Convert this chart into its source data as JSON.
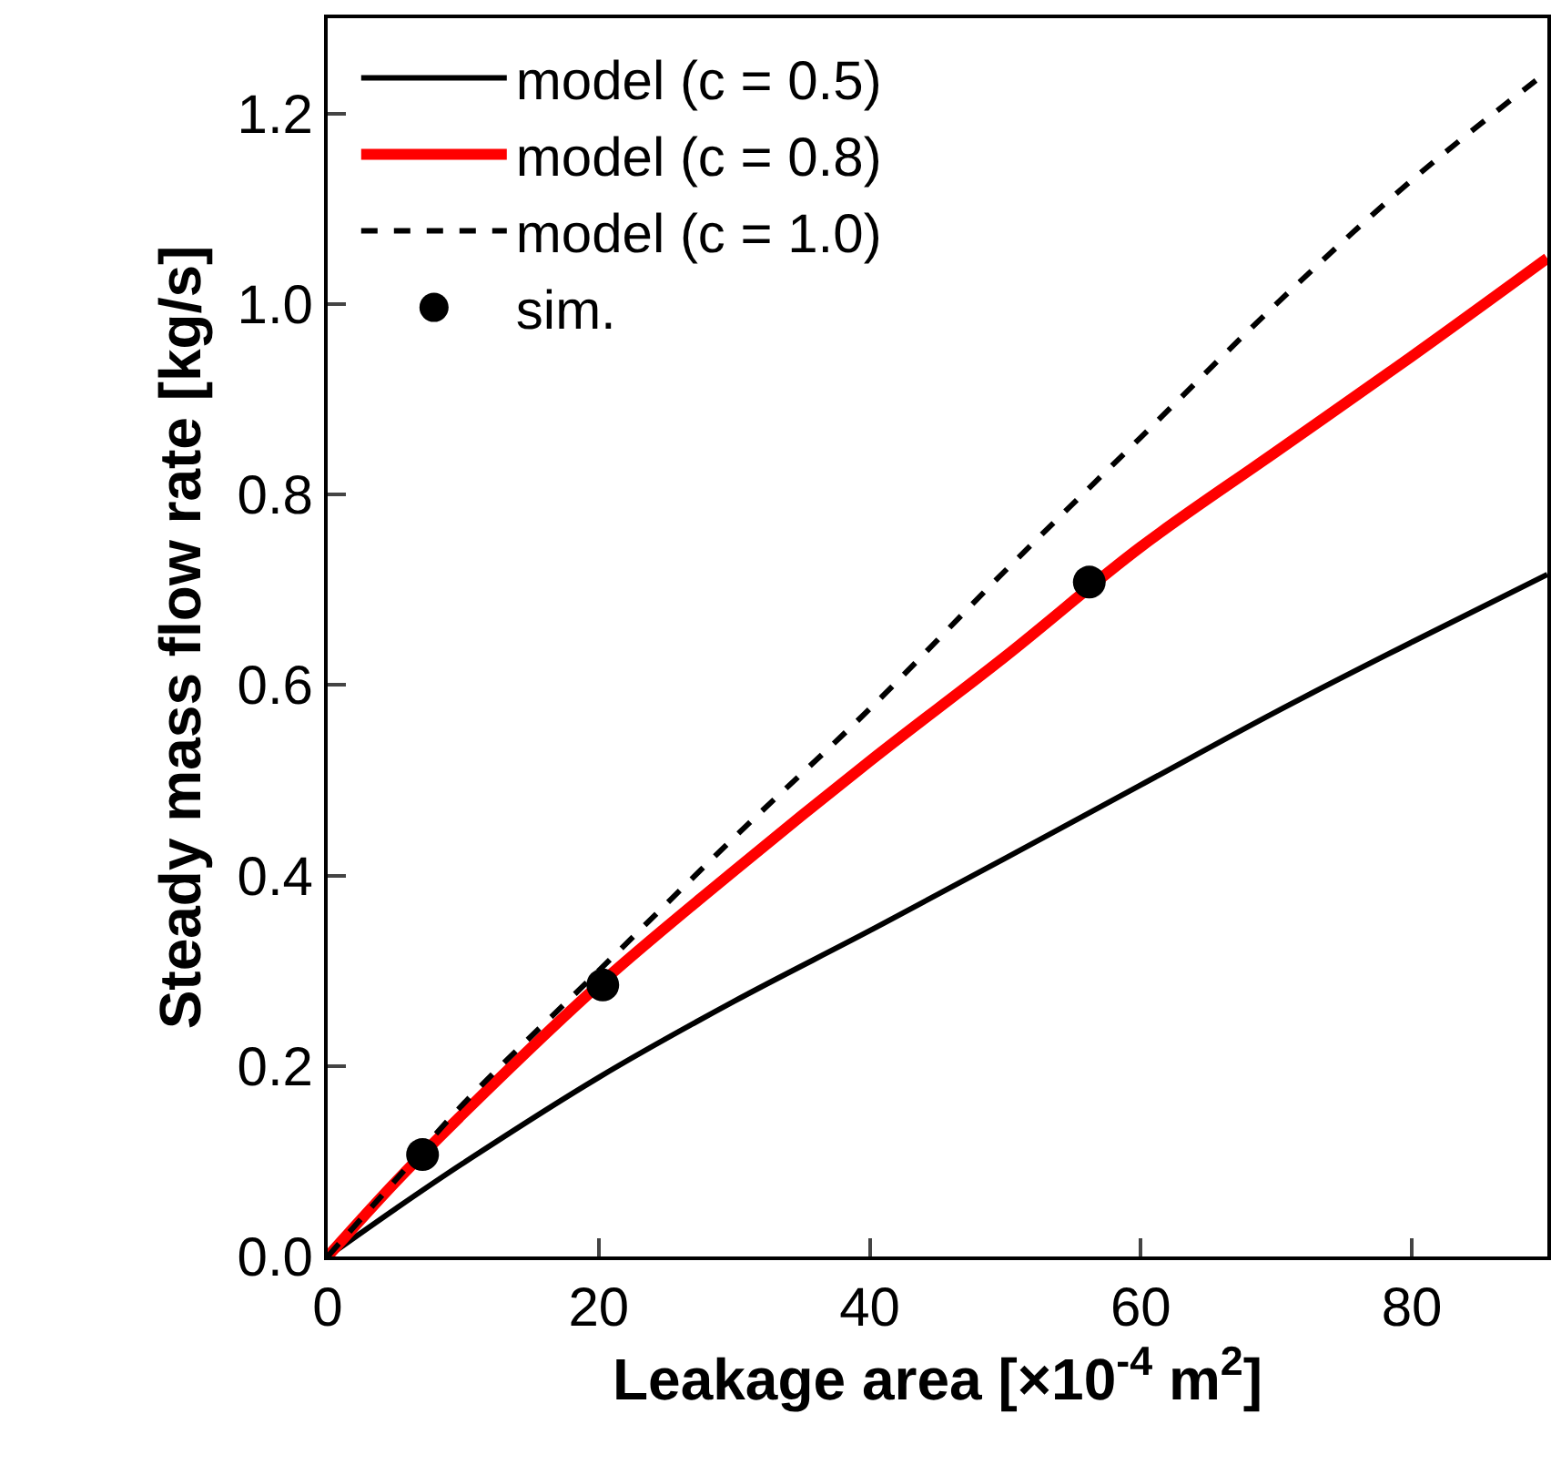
{
  "chart_data": {
    "type": "line",
    "xlabel": "Leakage area [×10$^{-4}$ m$^{2}$]",
    "ylabel": "Steady mass flow rate [kg/s]",
    "x": [
      0,
      5,
      10,
      20,
      30,
      40,
      50,
      60,
      70,
      80,
      90
    ],
    "series": [
      {
        "name": "model (c = 0.5)",
        "color": "#000000",
        "line_style": "solid",
        "values": [
          0,
          0.05,
          0.098,
          0.188,
          0.268,
          0.342,
          0.418,
          0.495,
          0.572,
          0.645,
          0.716
        ]
      },
      {
        "name": "model (c = 0.8)",
        "color": "#ff0000",
        "line_style": "solid",
        "values": [
          0,
          0.078,
          0.15,
          0.285,
          0.405,
          0.52,
          0.63,
          0.745,
          0.845,
          0.945,
          1.048
        ]
      },
      {
        "name": "model (c = 1.0)",
        "color": "#000000",
        "line_style": "dashed",
        "values": [
          0,
          0.08,
          0.16,
          0.3,
          0.44,
          0.575,
          0.72,
          0.86,
          1.0,
          1.13,
          1.244
        ]
      },
      {
        "name": "sim.",
        "type": "scatter",
        "marker": "circle",
        "color": "#000000",
        "x": [
          7,
          20.3,
          56.2
        ],
        "values": [
          0.107,
          0.285,
          0.708
        ]
      }
    ],
    "xlim": [
      0,
      90
    ],
    "xticks": [
      0,
      20,
      40,
      60,
      80
    ],
    "ylim": [
      0,
      1.3
    ],
    "yticks": [
      {
        "value": 0,
        "label": "0.0"
      },
      0.2,
      0.4,
      0.6,
      0.8,
      {
        "value": 1,
        "label": "1.0"
      },
      1.2
    ],
    "grid": false,
    "legend": "top left"
  }
}
